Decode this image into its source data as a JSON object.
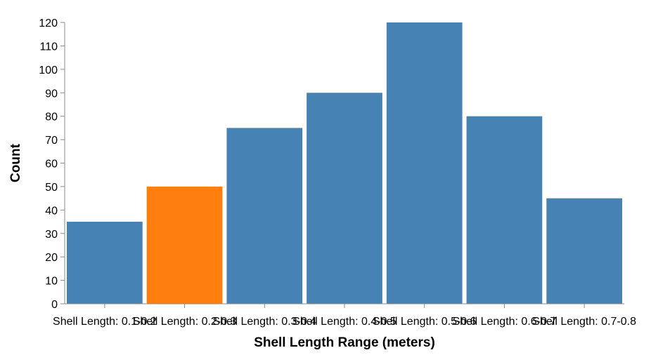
{
  "chart_data": {
    "type": "bar",
    "categories": [
      "Shell Length: 0.1-0.2",
      "Shell Length: 0.2-0.3",
      "Shell Length: 0.3-0.4",
      "Shell Length: 0.4-0.5",
      "Shell Length: 0.5-0.6",
      "Shell Length: 0.6-0.7",
      "Shell Length: 0.7-0.8"
    ],
    "values": [
      35,
      50,
      75,
      90,
      120,
      80,
      45
    ],
    "highlight_index": 1,
    "xlabel": "Shell Length Range (meters)",
    "ylabel": "Count",
    "ylim": [
      0,
      120
    ],
    "yticks": [
      0,
      10,
      20,
      30,
      40,
      50,
      60,
      70,
      80,
      90,
      100,
      110,
      120
    ],
    "grid": false,
    "colors": {
      "bar": "#4682b4",
      "highlight": "#ff7f0e",
      "axis": "#888888",
      "text": "#000000"
    }
  }
}
